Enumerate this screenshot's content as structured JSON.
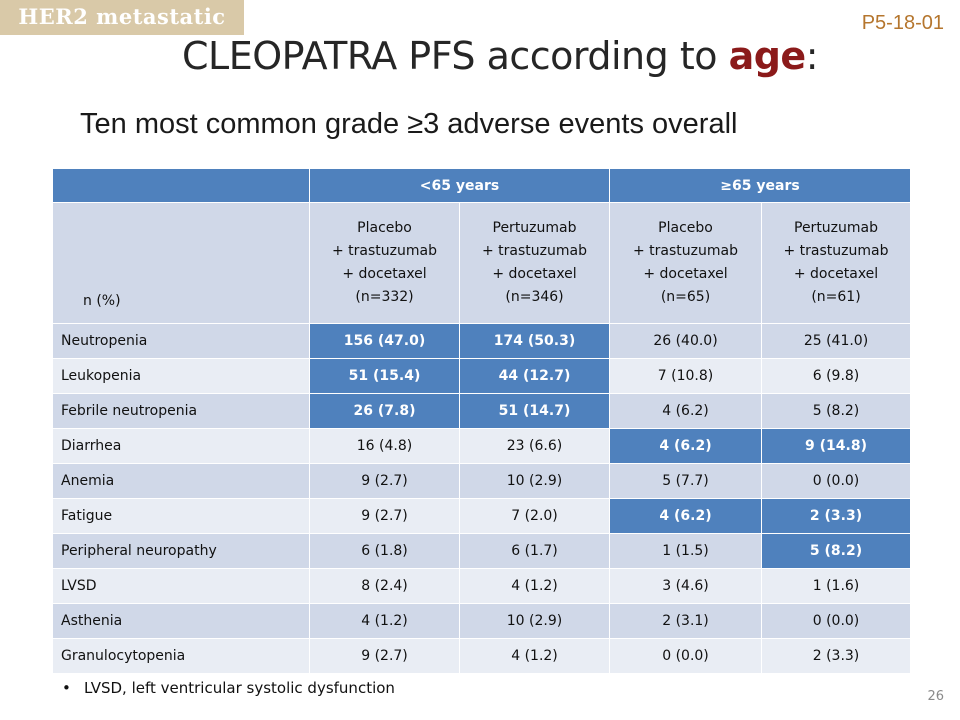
{
  "tag": "HER2 metastatic",
  "code": "P5-18-01",
  "title": {
    "main": "CLEOPATRA PFS according to ",
    "highlight": "age",
    "suffix": ":"
  },
  "subtitle": "Ten most common grade ≥3 adverse events overall",
  "table": {
    "groups": [
      "<65 years",
      "≥65 years"
    ],
    "row_label_header": "n (%)",
    "arms": [
      [
        "Placebo",
        "+ trastuzumab",
        "+ docetaxel",
        "(n=332)"
      ],
      [
        "Pertuzumab",
        "+ trastuzumab",
        "+ docetaxel",
        "(n=346)"
      ],
      [
        "Placebo",
        "+ trastuzumab",
        "+ docetaxel",
        "(n=65)"
      ],
      [
        "Pertuzumab",
        "+ trastuzumab",
        "+ docetaxel",
        "(n=61)"
      ]
    ],
    "rows": [
      {
        "label": "Neutropenia",
        "values": [
          "156 (47.0)",
          "174 (50.3)",
          "26 (40.0)",
          "25 (41.0)"
        ],
        "highlight": [
          0,
          1
        ]
      },
      {
        "label": "Leukopenia",
        "values": [
          "51 (15.4)",
          "44 (12.7)",
          "7 (10.8)",
          "6 (9.8)"
        ],
        "highlight": [
          0,
          1
        ]
      },
      {
        "label": "Febrile neutropenia",
        "values": [
          "26 (7.8)",
          "51 (14.7)",
          "4 (6.2)",
          "5 (8.2)"
        ],
        "highlight": [
          0,
          1
        ]
      },
      {
        "label": "Diarrhea",
        "values": [
          "16 (4.8)",
          "23 (6.6)",
          "4 (6.2)",
          "9 (14.8)"
        ],
        "highlight": [
          2,
          3
        ]
      },
      {
        "label": "Anemia",
        "values": [
          "9 (2.7)",
          "10 (2.9)",
          "5 (7.7)",
          "0 (0.0)"
        ],
        "highlight": []
      },
      {
        "label": "Fatigue",
        "values": [
          "9 (2.7)",
          "7 (2.0)",
          "4 (6.2)",
          "2 (3.3)"
        ],
        "highlight": [
          2,
          3
        ]
      },
      {
        "label": "Peripheral neuropathy",
        "values": [
          "6 (1.8)",
          "6 (1.7)",
          "1 (1.5)",
          "5 (8.2)"
        ],
        "highlight": [
          3
        ]
      },
      {
        "label": "LVSD",
        "values": [
          "8 (2.4)",
          "4 (1.2)",
          "3 (4.6)",
          "1 (1.6)"
        ],
        "highlight": []
      },
      {
        "label": "Asthenia",
        "values": [
          "4 (1.2)",
          "10 (2.9)",
          "2 (3.1)",
          "0 (0.0)"
        ],
        "highlight": []
      },
      {
        "label": "Granulocytopenia",
        "values": [
          "9 (2.7)",
          "4 (1.2)",
          "0 (0.0)",
          "2 (3.3)"
        ],
        "highlight": []
      }
    ]
  },
  "footnote": {
    "bullet": "•",
    "text": "LVSD, left ventricular systolic dysfunction"
  },
  "page_number": "26",
  "colors": {
    "header_blue": "#4f81bd",
    "row_light": "#d0d8e8",
    "row_lighter": "#e9edf4",
    "title_accent": "#8b1a1a",
    "tag_bg": "#d9c9a8",
    "code_color": "#b5762e"
  }
}
